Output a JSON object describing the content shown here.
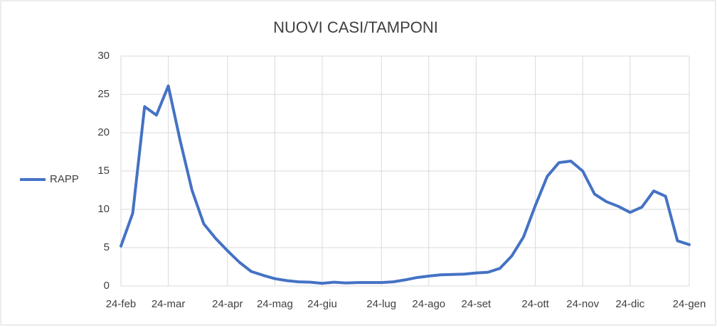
{
  "chart_data": {
    "type": "line",
    "title": "NUOVI CASI/TAMPONI",
    "categories": [
      "24-feb",
      null,
      null,
      null,
      "24-mar",
      null,
      null,
      null,
      null,
      "24-apr",
      null,
      null,
      null,
      "24-mag",
      null,
      null,
      null,
      "24-giu",
      null,
      null,
      null,
      null,
      "24-lug",
      null,
      null,
      null,
      "24-ago",
      null,
      null,
      null,
      "24-set",
      null,
      null,
      null,
      null,
      "24-ott",
      null,
      null,
      null,
      "24-nov",
      null,
      null,
      null,
      "24-dic",
      null,
      null,
      null,
      null,
      "24-gen"
    ],
    "series": [
      {
        "name": "RAPP",
        "color": "#4472c4",
        "values": [
          5.2,
          9.5,
          23.4,
          22.3,
          26.1,
          19,
          12.5,
          8.1,
          6.2,
          4.6,
          3.1,
          1.9,
          1.4,
          0.95,
          0.7,
          0.55,
          0.5,
          0.35,
          0.5,
          0.4,
          0.45,
          0.45,
          0.45,
          0.55,
          0.8,
          1.1,
          1.3,
          1.45,
          1.5,
          1.55,
          1.7,
          1.8,
          2.3,
          3.9,
          6.4,
          10.5,
          14.3,
          16.1,
          16.3,
          15,
          12,
          11,
          10.4,
          9.6,
          10.3,
          12.4,
          11.7,
          5.9,
          5.4
        ]
      }
    ],
    "ylim": [
      0,
      30
    ],
    "yticks": [
      0,
      5,
      10,
      15,
      20,
      25,
      30
    ],
    "grid": true,
    "legend": "left"
  }
}
